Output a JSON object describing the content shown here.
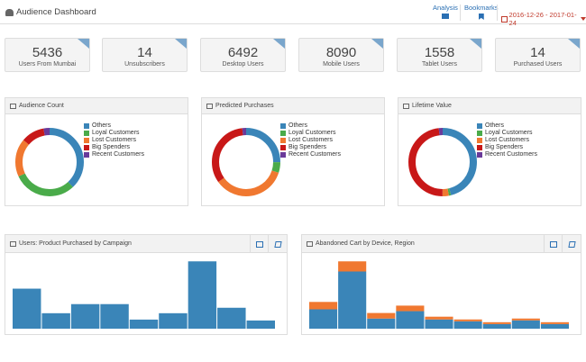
{
  "header": {
    "title": "Audience Dashboard",
    "analysis_label": "Analysis",
    "bookmarks_label": "Bookmarks",
    "date_range": "2016-12-26 - 2017-01-24"
  },
  "stats": [
    {
      "value": "5436",
      "label": "Users From Mumbai"
    },
    {
      "value": "14",
      "label": "Unsubscribers"
    },
    {
      "value": "6492",
      "label": "Desktop Users"
    },
    {
      "value": "8090",
      "label": "Mobile Users"
    },
    {
      "value": "1558",
      "label": "Tablet Users"
    },
    {
      "value": "14",
      "label": "Purchased Users"
    }
  ],
  "legend": [
    "Others",
    "Loyal Customers",
    "Lost Customers",
    "Big Spenders",
    "Recent Customers"
  ],
  "colors": {
    "others": "#3a85b8",
    "loyal": "#4aab4a",
    "lost": "#f07830",
    "big": "#c81818",
    "recent": "#6a3a9a",
    "accent": "#2a6fb3"
  },
  "donuts": [
    {
      "title": "Audience Count",
      "values": [
        38,
        30,
        18,
        11,
        3
      ]
    },
    {
      "title": "Predicted Purchases",
      "values": [
        25,
        5,
        35,
        33,
        2
      ]
    },
    {
      "title": "Lifetime Value",
      "values": [
        46,
        1,
        3,
        48,
        2
      ]
    }
  ],
  "bar_panels": [
    {
      "title": "Users: Product Purchased by Campaign",
      "values": [
        [
          44,
          0
        ],
        [
          17,
          0
        ],
        [
          27,
          0
        ],
        [
          27,
          0
        ],
        [
          10,
          0
        ],
        [
          17,
          0
        ],
        [
          74,
          0
        ],
        [
          23,
          0
        ],
        [
          9,
          0
        ]
      ]
    },
    {
      "title": "Abandoned Cart by Device, Region",
      "values": [
        [
          21,
          8
        ],
        [
          62,
          11
        ],
        [
          11,
          6
        ],
        [
          19,
          6
        ],
        [
          10,
          3
        ],
        [
          8,
          2
        ],
        [
          5,
          2
        ],
        [
          9,
          2
        ],
        [
          5,
          2
        ]
      ]
    }
  ]
}
